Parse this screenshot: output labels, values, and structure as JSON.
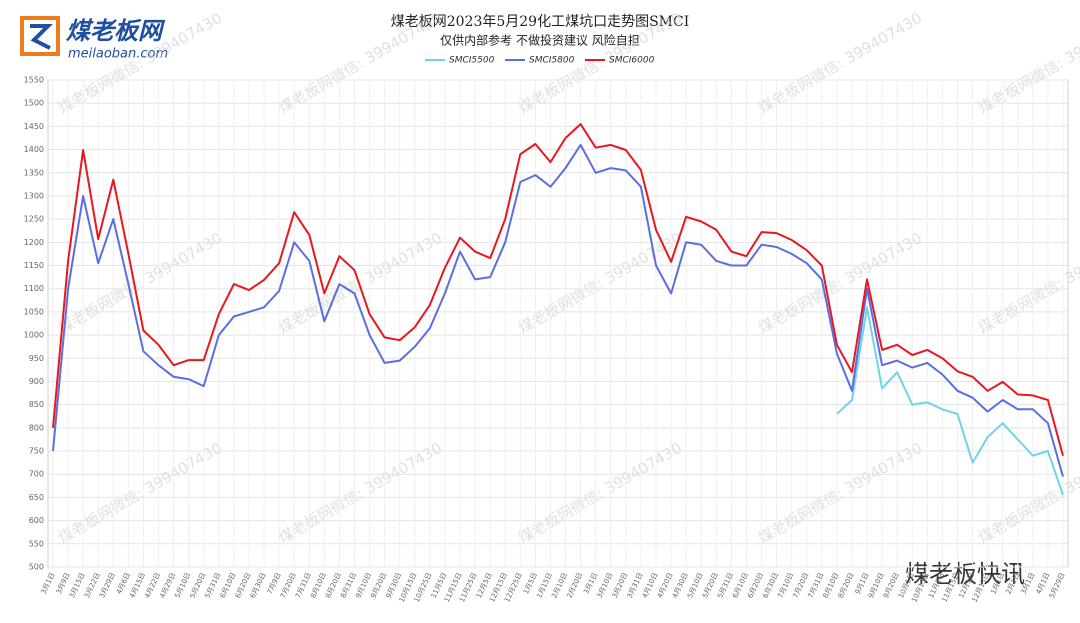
{
  "logo": {
    "name": "煤老板网",
    "url": "meilaoban.com"
  },
  "watermark": "煤老板网微信: 399407430",
  "footer_brand": "煤老板快讯",
  "chart_data": {
    "type": "line",
    "title": "煤老板网2023年5月29化工煤坑口走势图SMCI",
    "subtitle": "仅供内部参考 不做投资建议 风险自担",
    "categories": [
      "3月1日",
      "3月9日",
      "3月15日",
      "3月22日",
      "3月29日",
      "4月6日",
      "4月15日",
      "4月22日",
      "4月29日",
      "5月10日",
      "5月20日",
      "5月31日",
      "6月10日",
      "6月20日",
      "6月30日",
      "7月9日",
      "7月20日",
      "7月31日",
      "8月10日",
      "8月20日",
      "8月31日",
      "9月10日",
      "9月20日",
      "9月30日",
      "10月15日",
      "10月25日",
      "11月5日",
      "11月15日",
      "11月25日",
      "12月5日",
      "12月15日",
      "12月25日",
      "1月5日",
      "1月15日",
      "2月10日",
      "2月20日",
      "3月1日",
      "3月10日",
      "3月20日",
      "3月31日",
      "4月10日",
      "4月20日",
      "4月30日",
      "5月10日",
      "5月20日",
      "5月31日",
      "6月10日",
      "6月20日",
      "6月30日",
      "7月10日",
      "7月20日",
      "7月31日",
      "8月10日",
      "8月20日",
      "9月1日",
      "9月10日",
      "9月20日",
      "10月1日",
      "10月15日",
      "11月1日",
      "11月15日",
      "12月1日",
      "12月15日",
      "1月1日",
      "2月1日",
      "3月1日",
      "4月1日",
      "5月29日"
    ],
    "series": [
      {
        "name": "SMCI5500",
        "color": "#6fd3ea",
        "values": [
          null,
          null,
          null,
          null,
          null,
          null,
          null,
          null,
          null,
          null,
          null,
          null,
          null,
          null,
          null,
          null,
          null,
          null,
          null,
          null,
          null,
          null,
          null,
          null,
          null,
          null,
          null,
          null,
          null,
          null,
          null,
          null,
          null,
          null,
          null,
          null,
          null,
          null,
          null,
          null,
          null,
          null,
          null,
          null,
          null,
          null,
          null,
          null,
          null,
          null,
          null,
          null,
          830,
          860,
          1060,
          885,
          920,
          850,
          855,
          840,
          830,
          725,
          780,
          810,
          775,
          740,
          750,
          655
        ]
      },
      {
        "name": "SMCI5800",
        "color": "#5b6ee1",
        "values": [
          750,
          1100,
          1300,
          1155,
          1250,
          1110,
          965,
          935,
          910,
          905,
          890,
          1000,
          1040,
          1050,
          1060,
          1095,
          1200,
          1160,
          1030,
          1110,
          1090,
          1000,
          940,
          945,
          975,
          1015,
          1090,
          1180,
          1120,
          1125,
          1200,
          1330,
          1345,
          1320,
          1360,
          1410,
          1350,
          1360,
          1355,
          1320,
          1150,
          1090,
          1200,
          1195,
          1160,
          1150,
          1150,
          1195,
          1190,
          1175,
          1155,
          1120,
          960,
          880,
          1100,
          935,
          945,
          930,
          940,
          915,
          880,
          865,
          835,
          860,
          840,
          840,
          810,
          695
        ]
      },
      {
        "name": "SMCI6000",
        "color": "#e8161d",
        "values": [
          800,
          1160,
          1399,
          1207,
          1335,
          1175,
          1010,
          979,
          935,
          946,
          946,
          1045,
          1110,
          1097,
          1119,
          1155,
          1265,
          1216,
          1090,
          1170,
          1140,
          1045,
          995,
          989,
          1017,
          1065,
          1145,
          1210,
          1180,
          1166,
          1250,
          1390,
          1412,
          1373,
          1425,
          1455,
          1404,
          1410,
          1399,
          1356,
          1227,
          1158,
          1255,
          1245,
          1227,
          1180,
          1170,
          1222,
          1220,
          1205,
          1183,
          1150,
          979,
          920,
          1120,
          968,
          979,
          957,
          968,
          950,
          922,
          910,
          880,
          899,
          872,
          870,
          860,
          740
        ]
      }
    ],
    "ylim": [
      500,
      1550
    ],
    "yticks": [
      500,
      550,
      600,
      650,
      700,
      750,
      800,
      850,
      900,
      950,
      1000,
      1050,
      1100,
      1150,
      1200,
      1250,
      1300,
      1350,
      1400,
      1450,
      1500,
      1550
    ],
    "grid": true
  }
}
